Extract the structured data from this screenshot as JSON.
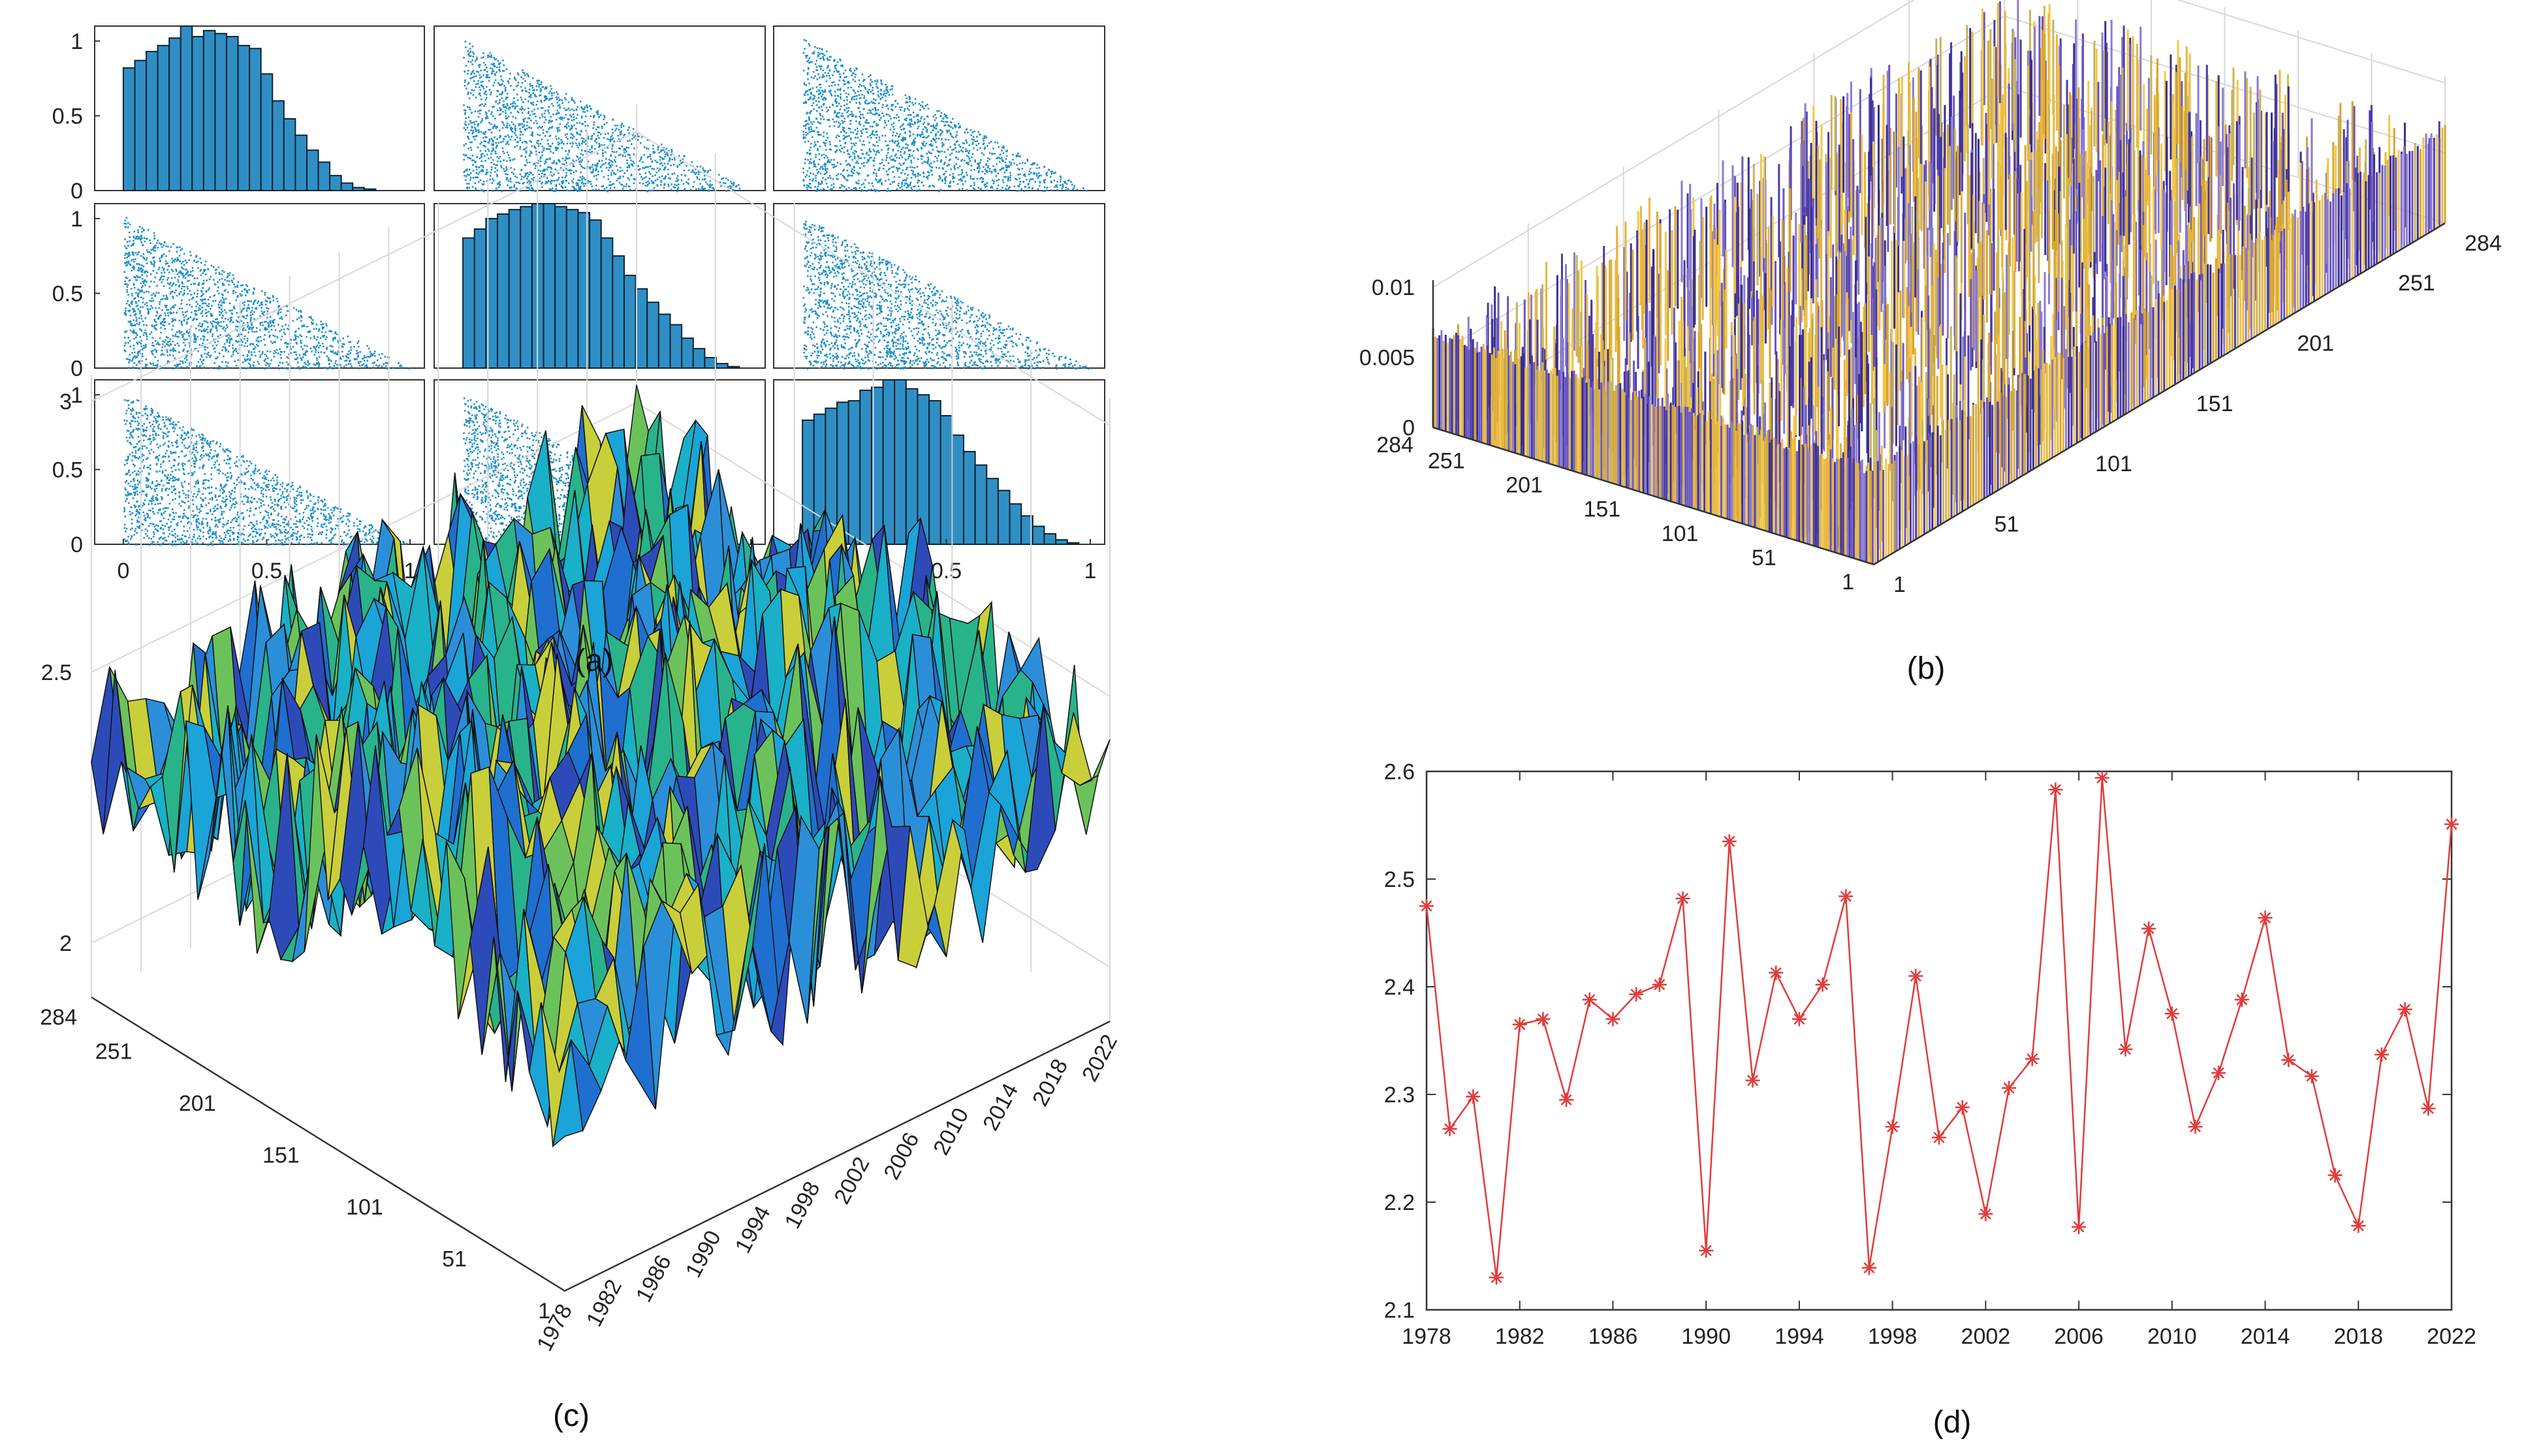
{
  "figure": {
    "captions": {
      "a": "(a)",
      "b": "(b)",
      "c": "(c)",
      "d": "(d)"
    }
  },
  "colors": {
    "hist": "#2f8fc4",
    "scatter": "#1e8fc8",
    "line": "#e23b3b",
    "surfDark": "#1e2a50"
  },
  "chart_data": [
    {
      "id": "a",
      "type": "scatter",
      "title": "",
      "xlabel": "",
      "ylabel": "",
      "layout": "3x3 matrix (histograms on diagonal, scatter off-diagonal)",
      "ylim": [
        0,
        1.1
      ],
      "xlim": [
        -0.1,
        1.05
      ],
      "yticks": [
        "0",
        "0.5",
        "1"
      ],
      "xticks": [
        "0",
        "0.5",
        "1"
      ],
      "hist_bin_width": 0.04,
      "hist_heights": [
        [
          0.82,
          0.87,
          0.93,
          0.97,
          1.02,
          1.1,
          1.03,
          1.07,
          1.05,
          1.03,
          0.97,
          0.95,
          0.78,
          0.6,
          0.48,
          0.37,
          0.27,
          0.19,
          0.1,
          0.05,
          0.02,
          0.01
        ],
        [
          0.87,
          0.93,
          1.0,
          1.03,
          1.06,
          1.08,
          1.1,
          1.1,
          1.08,
          1.06,
          1.04,
          0.99,
          0.87,
          0.75,
          0.62,
          0.53,
          0.44,
          0.36,
          0.29,
          0.2,
          0.13,
          0.07,
          0.03,
          0.01
        ],
        [
          0.83,
          0.87,
          0.91,
          0.95,
          0.96,
          1.03,
          1.05,
          1.1,
          1.1,
          1.04,
          1.0,
          0.96,
          0.86,
          0.73,
          0.62,
          0.53,
          0.44,
          0.36,
          0.27,
          0.19,
          0.12,
          0.07,
          0.03,
          0.01
        ]
      ]
    },
    {
      "id": "b",
      "type": "bar",
      "title": "",
      "xlabel": "",
      "ylabel": "",
      "zlim": [
        0,
        0.01
      ],
      "zticks": [
        "0",
        "0.005",
        "0.01"
      ],
      "xticks": [
        "1",
        "51",
        "101",
        "151",
        "201",
        "251",
        "284"
      ],
      "yticks": [
        "1",
        "51",
        "101",
        "151",
        "201",
        "251",
        "284"
      ],
      "approx_level": 0.007
    },
    {
      "id": "c",
      "type": "area",
      "title": "",
      "xlabel": "",
      "ylabel": "",
      "zlim": [
        1.9,
        3.05
      ],
      "zticks": [
        "2",
        "2.5",
        "3"
      ],
      "xticks": [
        "1978",
        "1982",
        "1986",
        "1990",
        "1994",
        "1998",
        "2002",
        "2006",
        "2010",
        "2014",
        "2018",
        "2022"
      ],
      "yticks": [
        "1",
        "51",
        "101",
        "151",
        "201",
        "251",
        "284"
      ],
      "approx_level": 2.35
    },
    {
      "id": "d",
      "type": "line",
      "title": "",
      "xlabel": "",
      "ylabel": "",
      "ylim": [
        2.1,
        2.6
      ],
      "xlim": [
        1978,
        2022
      ],
      "yticks": [
        "2.1",
        "2.2",
        "2.3",
        "2.4",
        "2.5",
        "2.6"
      ],
      "xticks": [
        "1978",
        "1982",
        "1986",
        "1990",
        "1994",
        "1998",
        "2002",
        "2006",
        "2010",
        "2014",
        "2018",
        "2022"
      ],
      "x": [
        1978,
        1979,
        1980,
        1981,
        1982,
        1983,
        1984,
        1985,
        1986,
        1987,
        1988,
        1989,
        1990,
        1991,
        1992,
        1993,
        1994,
        1995,
        1996,
        1997,
        1998,
        1999,
        2000,
        2001,
        2002,
        2003,
        2004,
        2005,
        2006,
        2007,
        2008,
        2009,
        2010,
        2011,
        2012,
        2013,
        2014,
        2015,
        2016,
        2017,
        2018,
        2019,
        2020,
        2021,
        2022
      ],
      "values": [
        2.475,
        2.268,
        2.298,
        2.13,
        2.365,
        2.37,
        2.295,
        2.388,
        2.37,
        2.393,
        2.402,
        2.482,
        2.155,
        2.535,
        2.313,
        2.413,
        2.37,
        2.402,
        2.484,
        2.139,
        2.27,
        2.41,
        2.26,
        2.288,
        2.189,
        2.306,
        2.333,
        2.583,
        2.177,
        2.594,
        2.342,
        2.454,
        2.375,
        2.27,
        2.32,
        2.388,
        2.464,
        2.332,
        2.317,
        2.225,
        2.178,
        2.337,
        2.379,
        2.287,
        2.551
      ]
    }
  ]
}
